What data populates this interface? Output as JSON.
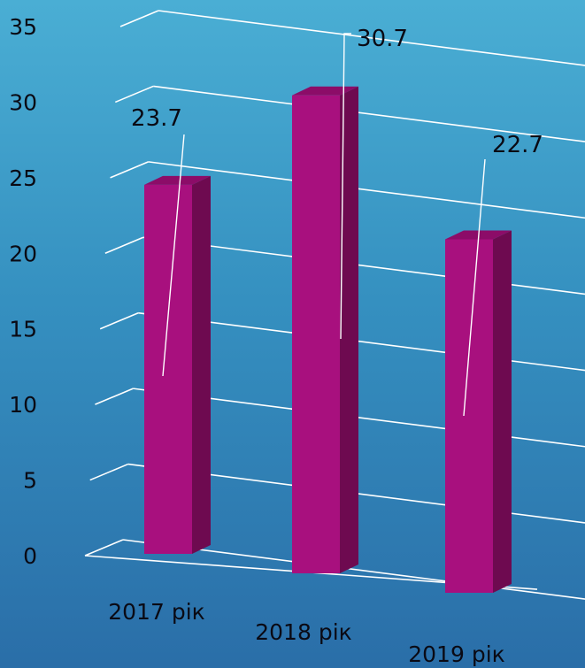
{
  "chart_data": {
    "type": "bar",
    "categories": [
      "2017 рік",
      "2018 рік",
      "2019 рік"
    ],
    "values": [
      23.7,
      30.7,
      22.7
    ],
    "ylim": [
      0,
      35
    ],
    "yticks": [
      0,
      5,
      10,
      15,
      20,
      25,
      30,
      35
    ],
    "grid": true,
    "perspective_3d": true,
    "colors": {
      "bar_front": "#a8107e",
      "bar_side": "#6e0a50",
      "bar_top": "#8c0c68",
      "gridline": "#ffffff",
      "text": "#0a0a14",
      "background_top": "#4aaed4",
      "background_bottom": "#2a6ea8"
    }
  }
}
